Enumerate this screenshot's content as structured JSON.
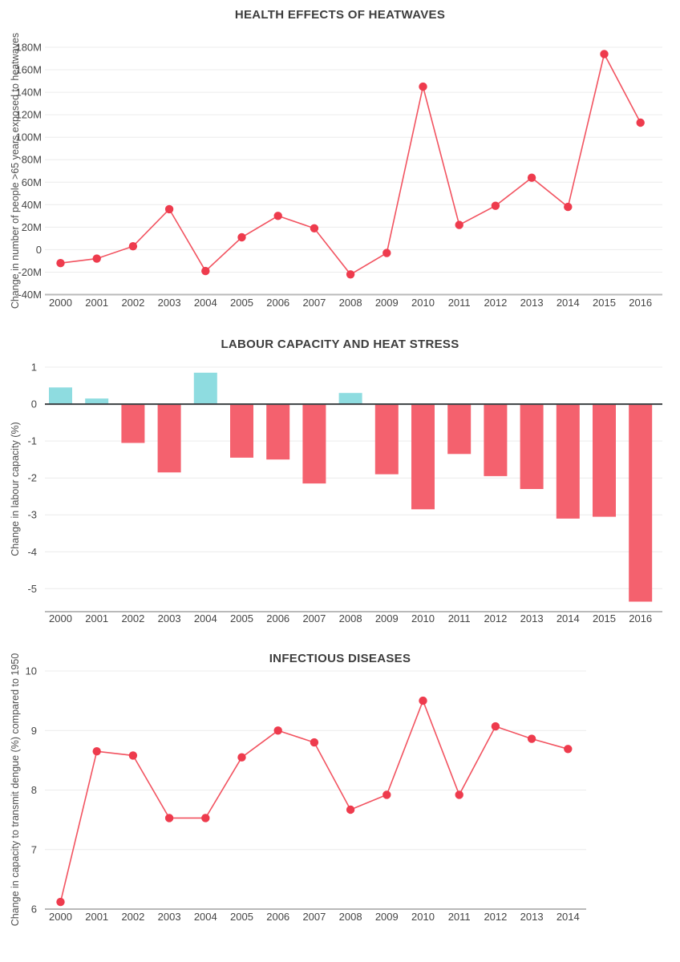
{
  "page": {
    "background": "#ffffff"
  },
  "colors": {
    "line": "#f25360",
    "marker": "#ee3b4d",
    "bar_positive": "#8edce0",
    "bar_negative": "#f4616e",
    "grid": "#ececec",
    "axis": "#b9b9b9",
    "zero_line": "#3c4043",
    "title": "#3d3d3d",
    "tick_text": "#454545",
    "axis_label_text": "#4f4f4f"
  },
  "chart_data": [
    {
      "type": "line",
      "title": "HEALTH EFFECTS OF HEATWAVES",
      "xlabel": "",
      "ylabel": "Change in number of people >65 years exposed to heatwaves",
      "categories": [
        "2000",
        "2001",
        "2002",
        "2003",
        "2004",
        "2005",
        "2006",
        "2007",
        "2008",
        "2009",
        "2010",
        "2011",
        "2012",
        "2013",
        "2014",
        "2015",
        "2016"
      ],
      "values": [
        -12,
        -8,
        3,
        36,
        -19,
        11,
        30,
        19,
        -22,
        -3,
        145,
        22,
        39,
        64,
        38,
        174,
        113
      ],
      "unit": "million people",
      "ylim": [
        -40,
        180
      ],
      "grid": "on",
      "legend": "none",
      "yticks": [
        {
          "v": 180,
          "label": "180M"
        },
        {
          "v": 160,
          "label": "160M"
        },
        {
          "v": 140,
          "label": "140M"
        },
        {
          "v": 120,
          "label": "120M"
        },
        {
          "v": 100,
          "label": "100M"
        },
        {
          "v": 80,
          "label": "80M"
        },
        {
          "v": 60,
          "label": "60M"
        },
        {
          "v": 40,
          "label": "40M"
        },
        {
          "v": 20,
          "label": "20M"
        },
        {
          "v": 0,
          "label": "0"
        },
        {
          "v": -20,
          "label": "-20M"
        },
        {
          "v": -40,
          "label": "-40M"
        }
      ]
    },
    {
      "type": "bar",
      "title": "LABOUR CAPACITY AND HEAT STRESS",
      "xlabel": "",
      "ylabel": "Change in labour capacity (%)",
      "categories": [
        "2000",
        "2001",
        "2002",
        "2003",
        "2004",
        "2005",
        "2006",
        "2007",
        "2008",
        "2009",
        "2010",
        "2011",
        "2012",
        "2013",
        "2014",
        "2015",
        "2016"
      ],
      "values": [
        0.45,
        0.15,
        -1.05,
        -1.85,
        0.85,
        -1.45,
        -1.5,
        -2.15,
        0.3,
        -1.9,
        -2.85,
        -1.35,
        -1.95,
        -2.3,
        -3.1,
        -3.05,
        -5.35
      ],
      "unit": "%",
      "ylim": [
        -5.6,
        1.15
      ],
      "grid": "on",
      "legend": "none",
      "positive_color": "#8edce0",
      "negative_color": "#f4616e",
      "yticks": [
        {
          "v": 1,
          "label": "1"
        },
        {
          "v": 0,
          "label": "0"
        },
        {
          "v": -1,
          "label": "-1"
        },
        {
          "v": -2,
          "label": "-2"
        },
        {
          "v": -3,
          "label": "-3"
        },
        {
          "v": -4,
          "label": "-4"
        },
        {
          "v": -5,
          "label": "-5"
        }
      ]
    },
    {
      "type": "line",
      "title": "INFECTIOUS DISEASES",
      "xlabel": "",
      "ylabel": "Change in capacity to transmit dengue (%) compared to 1950",
      "categories": [
        "2000",
        "2001",
        "2002",
        "2003",
        "2004",
        "2005",
        "2006",
        "2007",
        "2008",
        "2009",
        "2010",
        "2011",
        "2012",
        "2013",
        "2014"
      ],
      "values": [
        6.12,
        8.65,
        8.58,
        7.53,
        7.53,
        8.55,
        9.0,
        8.8,
        7.67,
        7.92,
        9.5,
        7.92,
        9.07,
        8.86,
        8.69
      ],
      "unit": "%",
      "ylim": [
        6,
        10.2
      ],
      "grid": "on",
      "legend": "none",
      "yticks": [
        {
          "v": 10,
          "label": "10"
        },
        {
          "v": 9,
          "label": "9"
        },
        {
          "v": 8,
          "label": "8"
        },
        {
          "v": 7,
          "label": "7"
        },
        {
          "v": 6,
          "label": "6"
        }
      ]
    }
  ]
}
